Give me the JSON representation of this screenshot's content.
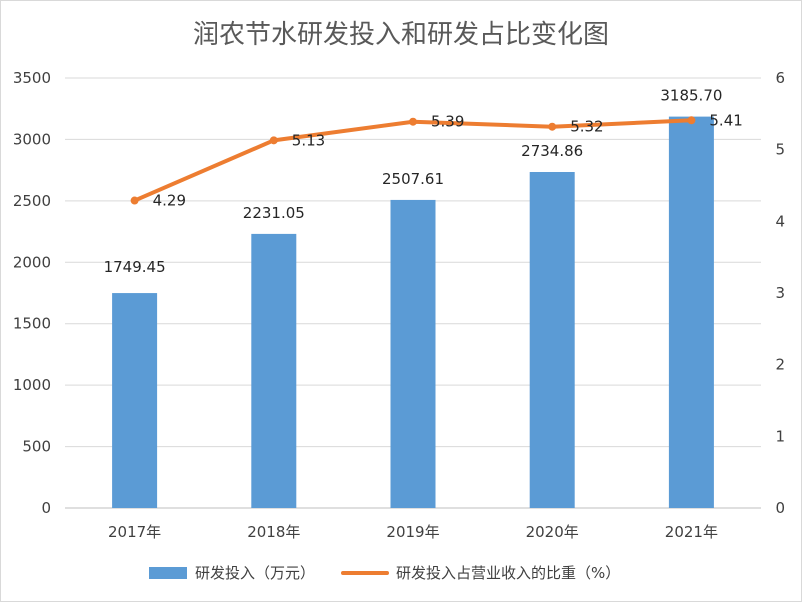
{
  "chart_data": {
    "type": "bar",
    "title": "润农节水研发投入和研发占比变化图",
    "categories": [
      "2017年",
      "2018年",
      "2019年",
      "2020年",
      "2021年"
    ],
    "series": [
      {
        "name": "研发投入（万元）",
        "type": "bar",
        "axis": "left",
        "color": "#5b9bd5",
        "values": [
          1749.45,
          2231.05,
          2507.61,
          2734.86,
          3185.7
        ],
        "labels": [
          "1749.45",
          "2231.05",
          "2507.61",
          "2734.86",
          "3185.70"
        ]
      },
      {
        "name": "研发投入占营业收入的比重（%）",
        "type": "line",
        "axis": "right",
        "color": "#ed7d31",
        "values": [
          4.29,
          5.13,
          5.39,
          5.32,
          5.41
        ],
        "labels": [
          "4.29",
          "5.13",
          "5.39",
          "5.32",
          "5.41"
        ]
      }
    ],
    "y_left": {
      "min": 0,
      "max": 3500,
      "ticks": [
        0,
        500,
        1000,
        1500,
        2000,
        2500,
        3000,
        3500
      ]
    },
    "y_right": {
      "min": 0,
      "max": 6,
      "ticks": [
        0,
        1,
        2,
        3,
        4,
        5,
        6
      ]
    },
    "grid": true,
    "legend_position": "bottom"
  }
}
